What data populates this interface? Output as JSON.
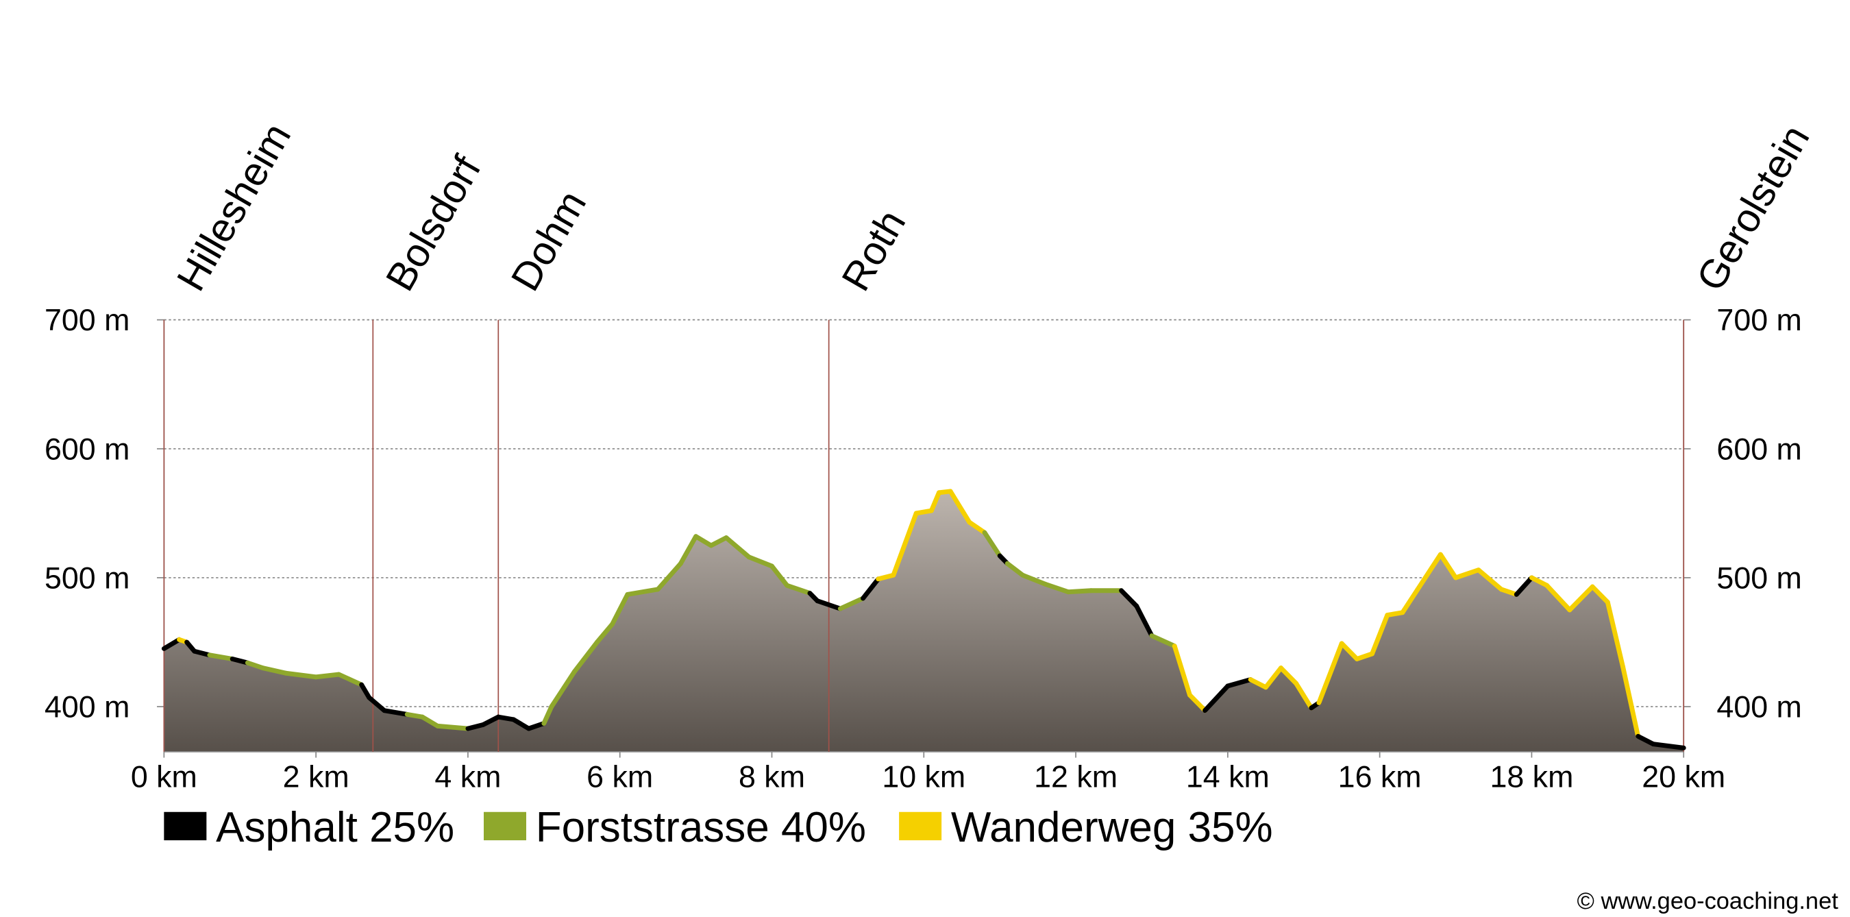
{
  "chart_data": {
    "type": "elevation-profile",
    "xlim": [
      0,
      20
    ],
    "xticks": [
      {
        "value": 0,
        "label": "0 km"
      },
      {
        "value": 2,
        "label": "2 km"
      },
      {
        "value": 4,
        "label": "4 km"
      },
      {
        "value": 6,
        "label": "6 km"
      },
      {
        "value": 8,
        "label": "8 km"
      },
      {
        "value": 10,
        "label": "10 km"
      },
      {
        "value": 12,
        "label": "12 km"
      },
      {
        "value": 14,
        "label": "14 km"
      },
      {
        "value": 16,
        "label": "16 km"
      },
      {
        "value": 18,
        "label": "18 km"
      },
      {
        "value": 20,
        "label": "20 km"
      }
    ],
    "ylim": [
      365,
      700
    ],
    "yticks": [
      {
        "value": 400,
        "label": "400 m"
      },
      {
        "value": 500,
        "label": "500 m"
      },
      {
        "value": 600,
        "label": "600 m"
      },
      {
        "value": 700,
        "label": "700 m"
      }
    ],
    "y2lim": [
      365,
      700
    ],
    "y2ticks": [
      {
        "value": 400,
        "label": "400 m"
      },
      {
        "value": 500,
        "label": "500 m"
      },
      {
        "value": 600,
        "label": "600 m"
      },
      {
        "value": 700,
        "label": "700 m"
      }
    ],
    "grid": true,
    "places": [
      {
        "name": "Hillesheim",
        "x": 0
      },
      {
        "name": "Bolsdorf",
        "x": 2.75
      },
      {
        "name": "Dohm",
        "x": 4.4
      },
      {
        "name": "Roth",
        "x": 8.75
      },
      {
        "name": "Gerolstein",
        "x": 20
      }
    ],
    "surfaces": [
      {
        "name": "Asphalt 25%",
        "color": "#000000"
      },
      {
        "name": "Forststrasse 40%",
        "color": "#8fa82c"
      },
      {
        "name": "Wanderweg 35%",
        "color": "#f5d000"
      }
    ],
    "x": [
      0,
      0.2,
      0.3,
      0.4,
      0.6,
      0.9,
      1.1,
      1.3,
      1.6,
      2.0,
      2.3,
      2.6,
      2.7,
      2.9,
      3.2,
      3.4,
      3.6,
      4.0,
      4.2,
      4.4,
      4.6,
      4.8,
      5.0,
      5.1,
      5.4,
      5.7,
      5.9,
      6.1,
      6.5,
      6.8,
      7.0,
      7.2,
      7.4,
      7.7,
      8.0,
      8.2,
      8.5,
      8.6,
      8.9,
      9.2,
      9.4,
      9.6,
      9.9,
      10.1,
      10.2,
      10.35,
      10.6,
      10.8,
      11.0,
      11.1,
      11.3,
      11.6,
      11.9,
      12.2,
      12.6,
      12.8,
      13.0,
      13.3,
      13.5,
      13.7,
      14.0,
      14.3,
      14.5,
      14.7,
      14.9,
      15.1,
      15.2,
      15.5,
      15.7,
      15.9,
      16.1,
      16.3,
      16.5,
      16.8,
      17.0,
      17.3,
      17.6,
      17.8,
      18.0,
      18.2,
      18.5,
      18.8,
      19.0,
      19.2,
      19.4,
      19.6,
      20.0
    ],
    "values": [
      445,
      452,
      450,
      443,
      440,
      437,
      434,
      430,
      426,
      423,
      425,
      417,
      407,
      397,
      394,
      392,
      385,
      383,
      386,
      392,
      390,
      383,
      387,
      400,
      427,
      450,
      464,
      487,
      491,
      511,
      532,
      525,
      531,
      516,
      509,
      494,
      488,
      482,
      476,
      484,
      499,
      502,
      550,
      552,
      566,
      567,
      543,
      535,
      517,
      511,
      502,
      495,
      489,
      490,
      490,
      478,
      455,
      447,
      409,
      397,
      416,
      421,
      415,
      430,
      418,
      399,
      403,
      449,
      437,
      441,
      471,
      473,
      491,
      518,
      500,
      506,
      491,
      487,
      500,
      494,
      475,
      493,
      481,
      431,
      377,
      371,
      368
    ],
    "surface": [
      0,
      2,
      0,
      0,
      1,
      0,
      1,
      1,
      1,
      1,
      1,
      0,
      0,
      0,
      1,
      1,
      1,
      0,
      0,
      0,
      0,
      0,
      1,
      1,
      1,
      1,
      1,
      1,
      1,
      1,
      1,
      1,
      1,
      1,
      1,
      1,
      0,
      0,
      1,
      0,
      2,
      2,
      2,
      2,
      2,
      2,
      2,
      1,
      0,
      1,
      1,
      1,
      1,
      1,
      0,
      0,
      1,
      2,
      2,
      0,
      0,
      2,
      2,
      2,
      2,
      0,
      2,
      2,
      2,
      2,
      2,
      2,
      2,
      2,
      2,
      2,
      2,
      0,
      2,
      2,
      2,
      2,
      2,
      2,
      0,
      0,
      0
    ],
    "credit": "© www.geo-coaching.net"
  }
}
